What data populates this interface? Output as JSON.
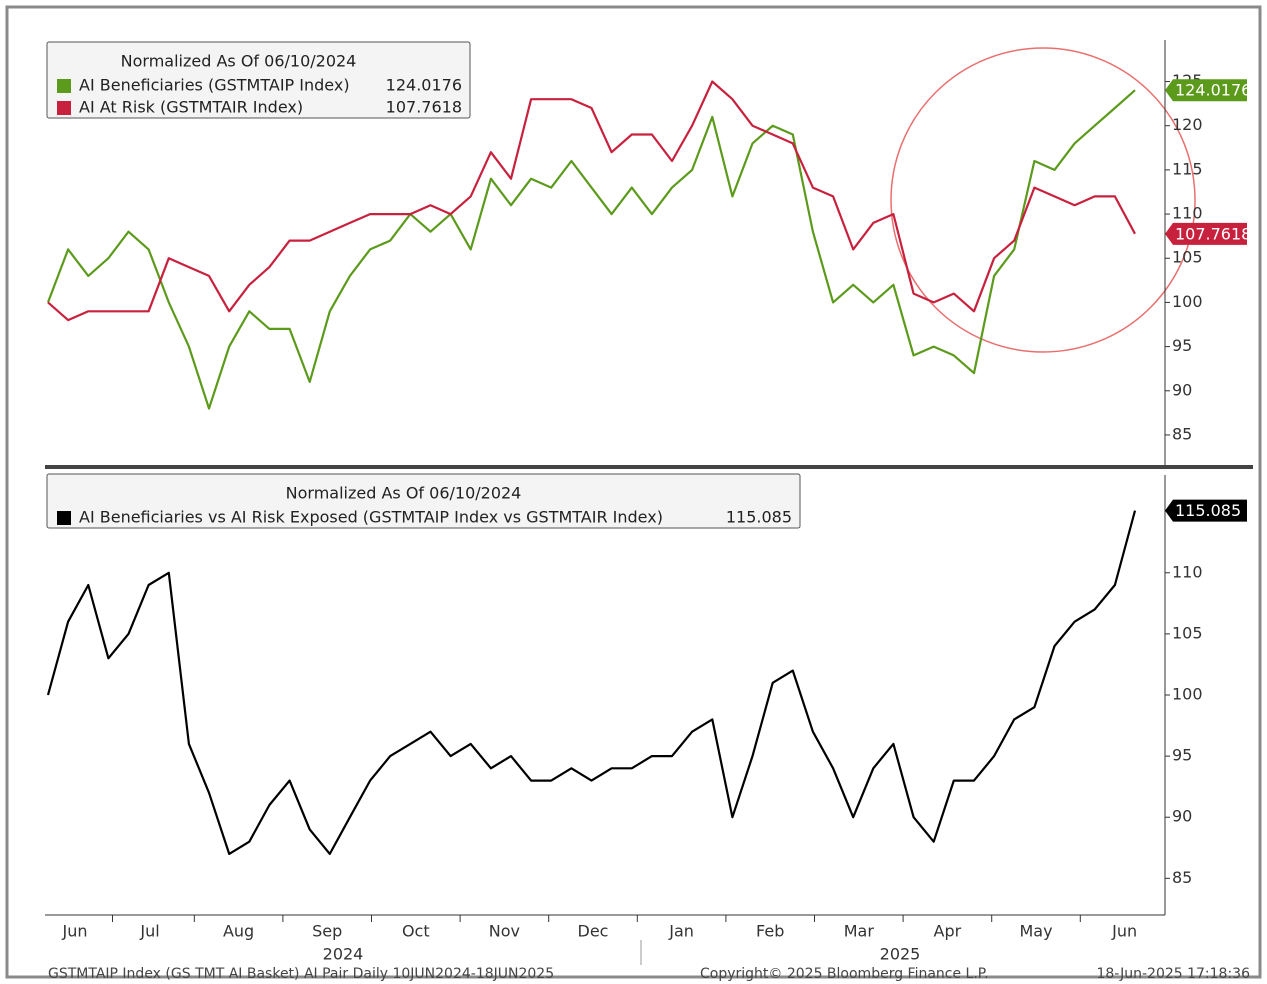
{
  "chart_data": [
    {
      "type": "line",
      "legend_title": "Normalized As Of 06/10/2024",
      "ylim": [
        81.6,
        129.7
      ],
      "yticks": [
        85,
        90,
        95,
        100,
        105,
        110,
        115,
        120,
        125
      ],
      "series": [
        {
          "name": "AI Beneficiaries (GSTMTAIP Index)",
          "color": "#5c9a1c",
          "values": [
            100,
            106,
            103,
            105,
            108,
            106,
            100,
            95,
            88,
            95,
            99,
            97,
            97,
            91,
            99,
            103,
            106,
            107,
            110,
            108,
            110,
            106,
            114,
            111,
            114,
            113,
            116,
            113,
            110,
            113,
            110,
            113,
            115,
            121,
            112,
            118,
            120,
            119,
            108,
            100,
            102,
            100,
            102,
            94,
            95,
            94,
            92,
            103,
            106,
            116,
            115,
            118,
            120,
            122,
            124.0176
          ]
        },
        {
          "name": "AI At Risk (GSTMTAIR Index)",
          "color": "#c8213e",
          "values": [
            100,
            98,
            99,
            99,
            99,
            99,
            105,
            104,
            103,
            99,
            102,
            104,
            107,
            107,
            108,
            109,
            110,
            110,
            110,
            111,
            110,
            112,
            117,
            114,
            123,
            123,
            123,
            122,
            117,
            119,
            119,
            116,
            120,
            125,
            123,
            120,
            119,
            118,
            113,
            112,
            106,
            109,
            110,
            101,
            100,
            101,
            99,
            105,
            107,
            113,
            112,
            111,
            112,
            112,
            107.7618
          ]
        }
      ]
    },
    {
      "type": "line",
      "legend_title": "Normalized As Of 06/10/2024",
      "ylim": [
        82,
        118
      ],
      "yticks": [
        85,
        90,
        95,
        100,
        105,
        110
      ],
      "series": [
        {
          "name": "AI Beneficiaries vs AI Risk Exposed (GSTMTAIP Index vs GSTMTAIR Index)",
          "color": "#000000",
          "values": [
            100,
            106,
            109,
            103,
            105,
            109,
            110,
            96,
            92,
            87,
            88,
            91,
            93,
            89,
            87,
            90,
            93,
            95,
            96,
            97,
            95,
            96,
            94,
            95,
            93,
            93,
            94,
            93,
            94,
            94,
            95,
            95,
            97,
            98,
            90,
            95,
            101,
            102,
            97,
            94,
            90,
            94,
            96,
            90,
            88,
            93,
            93,
            95,
            98,
            99,
            104,
            106,
            107,
            109,
            115.085
          ]
        }
      ]
    }
  ],
  "x_axis": {
    "months": [
      "Jun",
      "Jul",
      "Aug",
      "Sep",
      "Oct",
      "Nov",
      "Dec",
      "Jan",
      "Feb",
      "Mar",
      "Apr",
      "May",
      "Jun"
    ],
    "years": [
      "2024",
      "2025"
    ]
  },
  "footer": [
    "GSTMTAIP Index (GS TMT AI Basket) AI Pair  Daily 10JUN2024-18JUN2025",
    "Copyright© 2025 Bloomberg Finance L.P.",
    "18-Jun-2025 17:18:36"
  ]
}
